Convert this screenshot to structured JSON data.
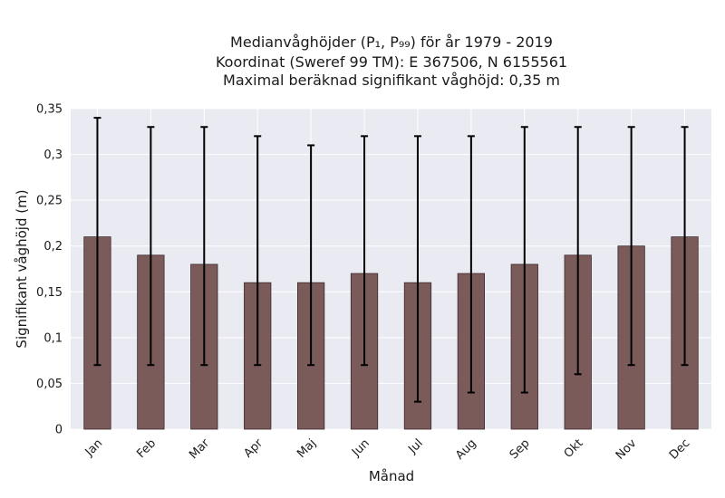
{
  "chart_data": {
    "type": "bar",
    "title_lines": [
      "Medianvåghöjder (P₁, P₉₉) för år 1979 - 2019",
      "Koordinat (Sweref 99 TM): E 367506, N 6155561",
      "Maximal beräknad signifikant våghöjd: 0,35 m"
    ],
    "xlabel": "Månad",
    "ylabel": "Signifikant våghöjd (m)",
    "categories": [
      "Jan",
      "Feb",
      "Mar",
      "Apr",
      "Maj",
      "Jun",
      "Jul",
      "Aug",
      "Sep",
      "Okt",
      "Nov",
      "Dec"
    ],
    "values": [
      0.21,
      0.19,
      0.18,
      0.16,
      0.16,
      0.17,
      0.16,
      0.17,
      0.18,
      0.19,
      0.2,
      0.21
    ],
    "p1": [
      0.07,
      0.07,
      0.07,
      0.07,
      0.07,
      0.07,
      0.03,
      0.04,
      0.04,
      0.06,
      0.07,
      0.07
    ],
    "p99": [
      0.34,
      0.33,
      0.33,
      0.32,
      0.31,
      0.32,
      0.32,
      0.32,
      0.33,
      0.33,
      0.33,
      0.33
    ],
    "ylim": [
      0,
      0.35
    ],
    "yticks": [
      0,
      0.05,
      0.1,
      0.15,
      0.2,
      0.25,
      0.3,
      0.35
    ],
    "ytick_labels": [
      "0",
      "0,05",
      "0,1",
      "0,15",
      "0,2",
      "0,25",
      "0,3",
      "0,35"
    ],
    "grid": true,
    "colors": {
      "bar": "#7b5a5a",
      "bar_edge": "#3a2a2a",
      "errorbar": "#000000",
      "plot_bg": "#eaeaf2",
      "grid": "#ffffff"
    }
  }
}
